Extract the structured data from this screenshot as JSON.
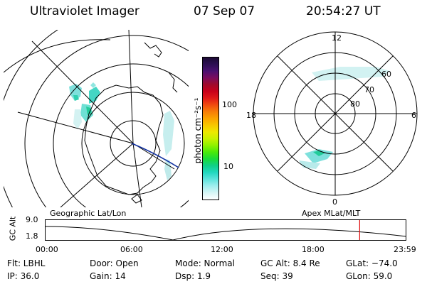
{
  "header": {
    "instrument": "Ultraviolet Imager",
    "date": "07 Sep 07",
    "time": "20:54:27 UT"
  },
  "colorbar": {
    "label": "photon cm⁻²s⁻¹",
    "ticks": [
      "100",
      "10"
    ],
    "colors": [
      "#1b0a33",
      "#2c0f52",
      "#4a1070",
      "#7a0c5e",
      "#a00a2c",
      "#c8001a",
      "#e01818",
      "#f04a10",
      "#f77d08",
      "#fba300",
      "#f7c600",
      "#eee800",
      "#c9f200",
      "#8ff200",
      "#48ea0a",
      "#1adc38",
      "#10d088",
      "#22d8c0",
      "#5ee4dd",
      "#a0eeee",
      "#d6f6f6",
      "#ffffff"
    ]
  },
  "left_map": {
    "label": "Geographic Lat/Lon"
  },
  "right_map": {
    "label": "Apex  MLat/MLT",
    "mlt_top": "12",
    "mlt_bottom": "0",
    "mlt_left": "18",
    "mlt_right": "6",
    "lat_rings": [
      "60",
      "70",
      "80"
    ]
  },
  "alt_plot": {
    "ylabel": "GC Alt",
    "ymax": "9.0",
    "ymin": "1.8",
    "xticks": [
      "00:00",
      "06:00",
      "12:00",
      "18:00",
      "23:59"
    ],
    "marker_time_hours": 20.9,
    "marker_color": "#e01010"
  },
  "info": {
    "flt": "Flt: LBHL",
    "ip": "IP: 36.0",
    "door": "Door: Open",
    "gain": "Gain: 14",
    "mode": "Mode: Normal",
    "dsp": "Dsp:    1.9",
    "gcalt": "GC Alt: 8.4 Re",
    "seq": "Seq: 39",
    "glat": "GLat: −74.0",
    "glon": "GLon:  59.0"
  }
}
